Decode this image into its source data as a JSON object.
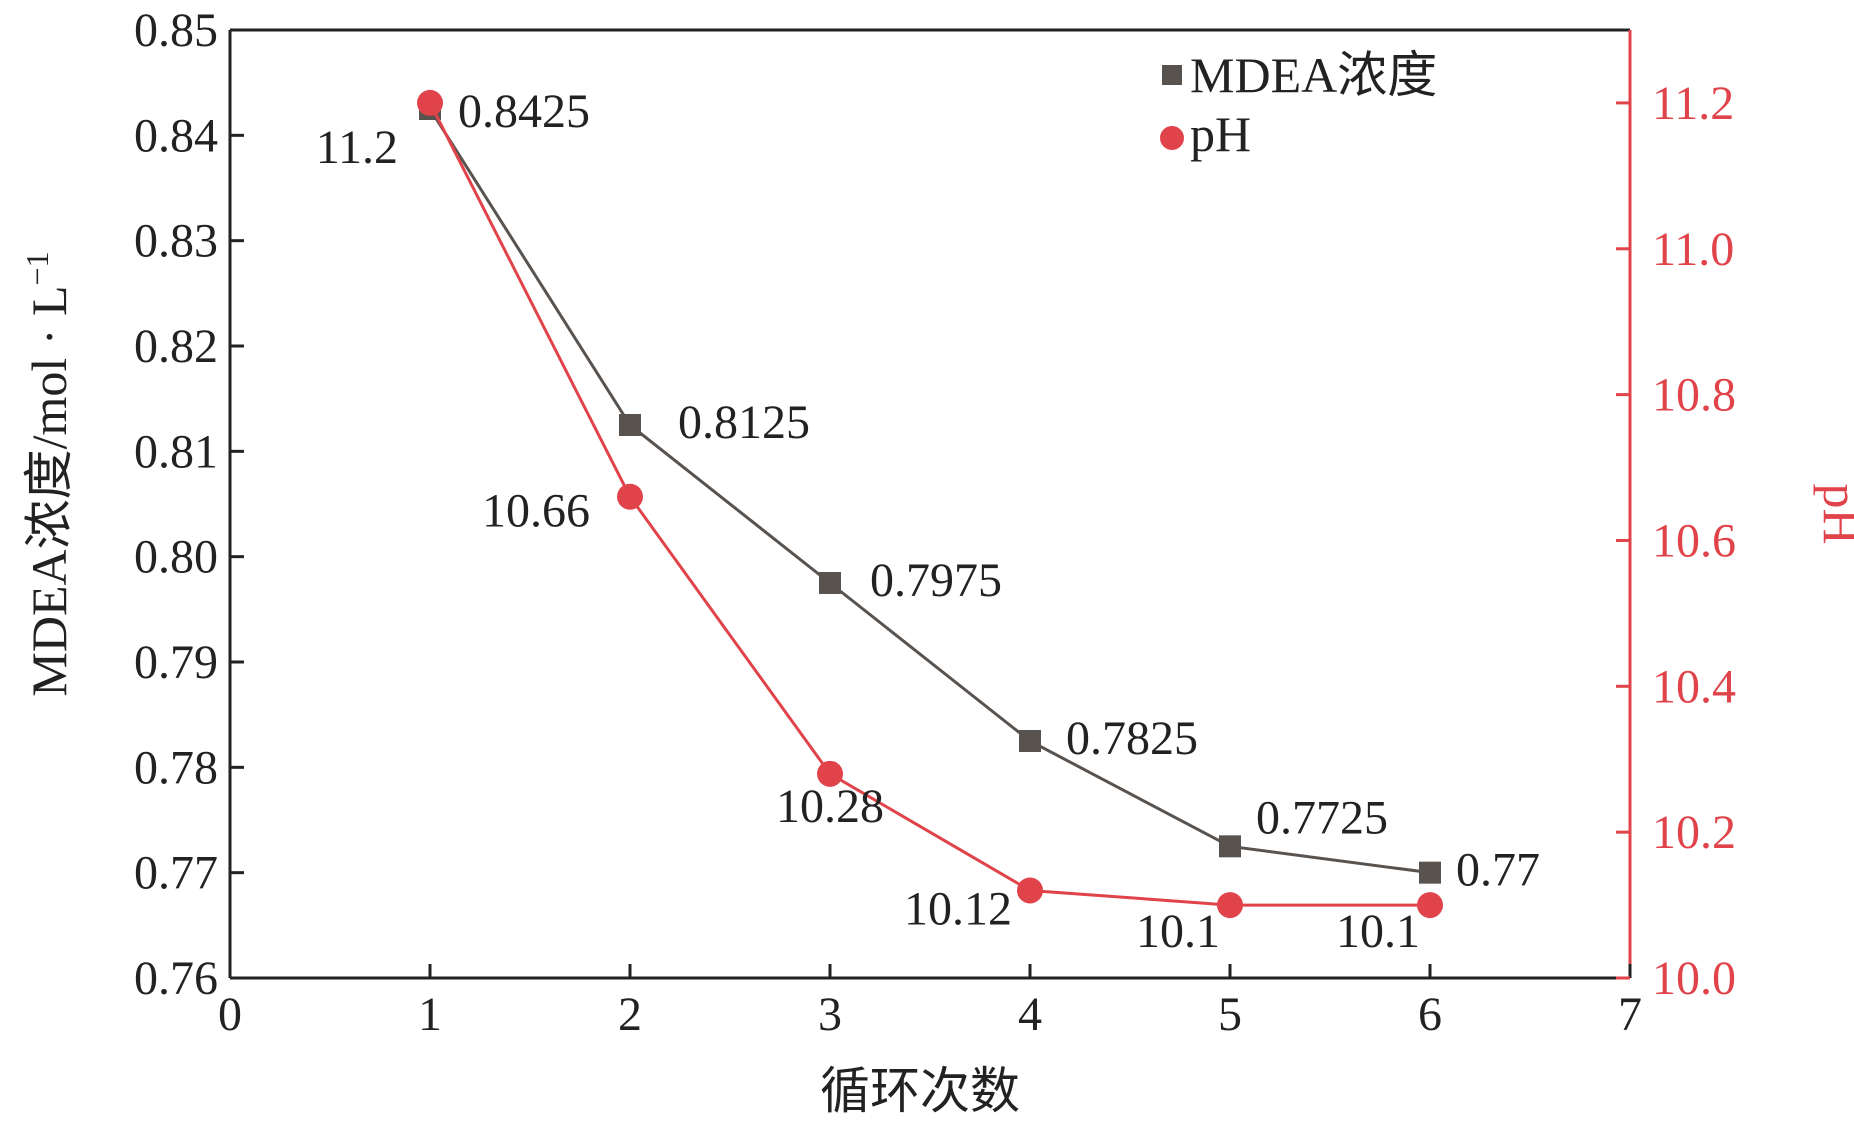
{
  "chart_data": {
    "type": "line",
    "xlabel": "循环次数",
    "x_ticks": [
      "0",
      "1",
      "2",
      "3",
      "4",
      "5",
      "6",
      "7"
    ],
    "xlim": [
      0,
      7
    ],
    "left_axis": {
      "label": "MDEA浓度/mol · L",
      "label_sup": "−1",
      "ylim": [
        0.76,
        0.85
      ],
      "ticks": [
        "0.76",
        "0.77",
        "0.78",
        "0.79",
        "0.80",
        "0.81",
        "0.82",
        "0.83",
        "0.84",
        "0.85"
      ]
    },
    "right_axis": {
      "label": "pH",
      "ylim": [
        10.0,
        11.3
      ],
      "ticks": [
        "10.0",
        "10.2",
        "10.4",
        "10.6",
        "10.8",
        "11.0",
        "11.2"
      ]
    },
    "legend_position": "top-right",
    "series": [
      {
        "name": "MDEA浓度",
        "axis": "left",
        "marker": "square",
        "color": "#595350",
        "x": [
          1,
          2,
          3,
          4,
          5,
          6
        ],
        "values": [
          0.8425,
          0.8125,
          0.7975,
          0.7825,
          0.7725,
          0.77
        ],
        "labels": [
          "0.8425",
          "0.8125",
          "0.7975",
          "0.7825",
          "0.7725",
          "0.77"
        ]
      },
      {
        "name": "pH",
        "axis": "right",
        "marker": "circle",
        "color": "#e0434a",
        "x": [
          1,
          2,
          3,
          4,
          5,
          6
        ],
        "values": [
          11.2,
          10.66,
          10.28,
          10.12,
          10.1,
          10.1
        ],
        "labels": [
          "11.2",
          "10.66",
          "10.28",
          "10.12",
          "10.1",
          "10.1"
        ]
      }
    ],
    "grid": false
  }
}
